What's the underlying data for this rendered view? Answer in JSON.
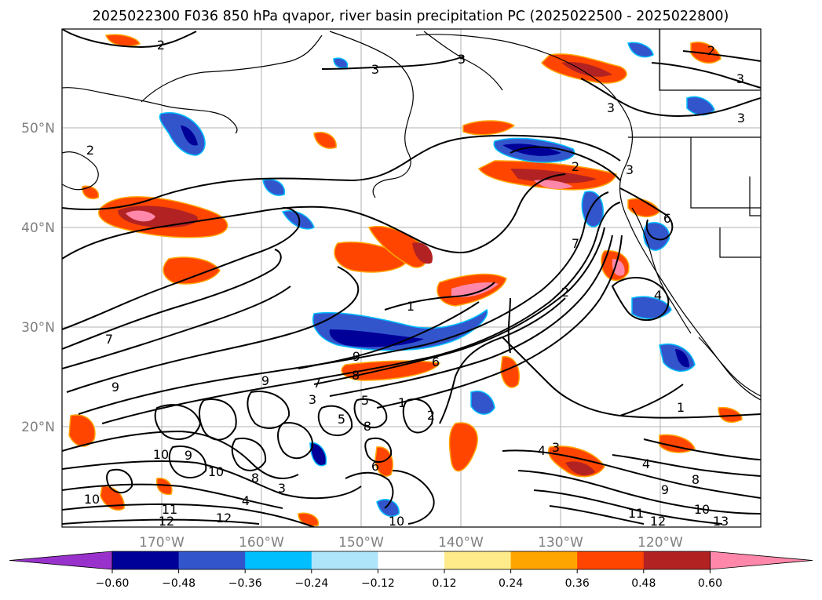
{
  "title": "2025022300 F036 850 hPa qvapor, river basin precipitation PC (2025022500 - 2025022800)",
  "lat_labels": [
    "50°N",
    "40°N",
    "30°N",
    "20°N"
  ],
  "lon_labels": [
    "170°W",
    "160°W",
    "150°W",
    "140°W",
    "130°W",
    "120°W"
  ],
  "colorbar": {
    "ticks": [
      "−0.60",
      "−0.48",
      "−0.36",
      "−0.24",
      "−0.12",
      "0.12",
      "0.24",
      "0.36",
      "0.48",
      "0.60"
    ],
    "colors": [
      "#9932cc",
      "#000099",
      "#3355cc",
      "#00bfff",
      "#aee5fb",
      "#ffffff",
      "#ffeb8a",
      "#ffa500",
      "#ff4500",
      "#b22222",
      "#ff88aa"
    ]
  },
  "contour_labels": [
    "2",
    "3",
    "3",
    "3",
    "2",
    "3",
    "3",
    "2",
    "2",
    "3",
    "6",
    "1",
    "2",
    "4",
    "7",
    "7",
    "9",
    "8",
    "9",
    "6",
    "1",
    "4",
    "3",
    "5",
    "7",
    "8",
    "6",
    "10",
    "9",
    "10",
    "10",
    "12",
    "11",
    "12",
    "13",
    "10",
    "9",
    "8",
    "4",
    "1",
    "2",
    "3",
    "4",
    "5",
    "8",
    "11",
    "12",
    "3",
    "9",
    "10"
  ]
}
